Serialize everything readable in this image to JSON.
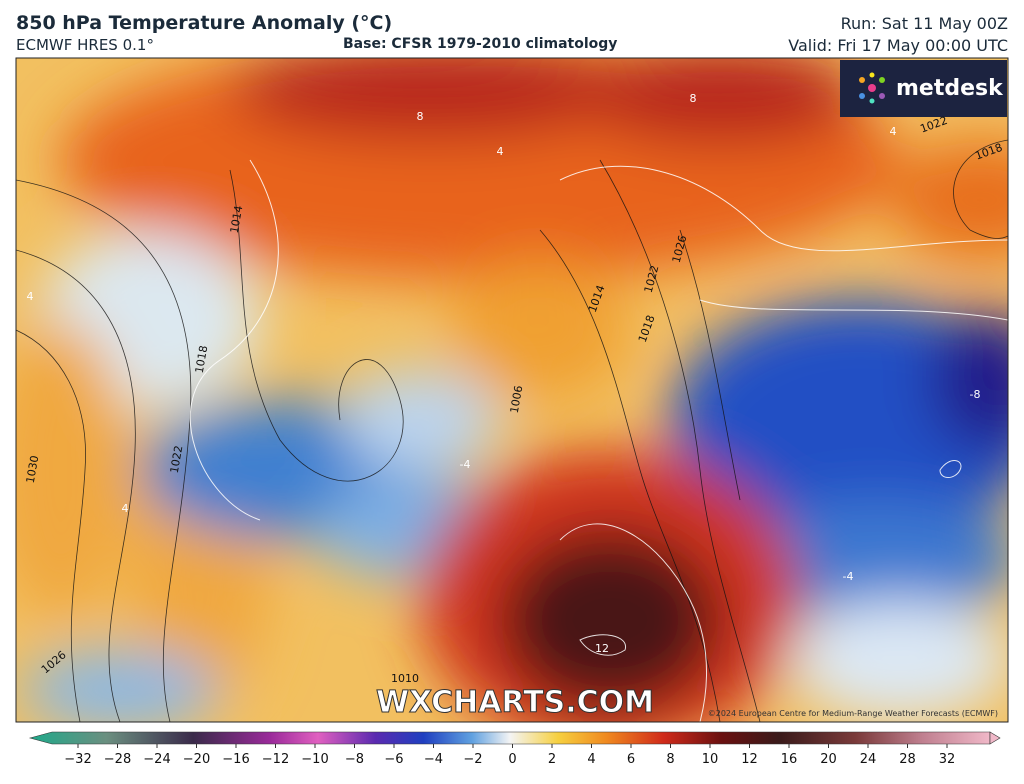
{
  "header": {
    "title": "850 hPa Temperature Anomaly (°C)",
    "model": "ECMWF HRES 0.1°",
    "base": "Base: CFSR 1979-2010 climatology",
    "run": "Run: Sat 11 May 00Z",
    "valid": "Valid: Fri 17 May 00:00 UTC"
  },
  "logo": "metdesk",
  "watermark": "WXCHARTS.COM",
  "copyright": "©2024 European Centre for Medium-Range Weather Forecasts (ECMWF)",
  "contour_labels": [
    "1014",
    "1018",
    "1022",
    "1030",
    "1026",
    "1010",
    "1006",
    "1014",
    "1018",
    "1022",
    "1026",
    "1022",
    "1018",
    "8",
    "8",
    "4",
    "4",
    "4",
    "-4",
    "-4",
    "-8",
    "12",
    "4"
  ],
  "colorbar": [
    "−32",
    "−28",
    "−24",
    "−20",
    "−16",
    "−12",
    "−10",
    "−8",
    "−6",
    "−4",
    "−2",
    "0",
    "2",
    "4",
    "6",
    "8",
    "10",
    "12",
    "16",
    "20",
    "24",
    "28",
    "32"
  ]
}
